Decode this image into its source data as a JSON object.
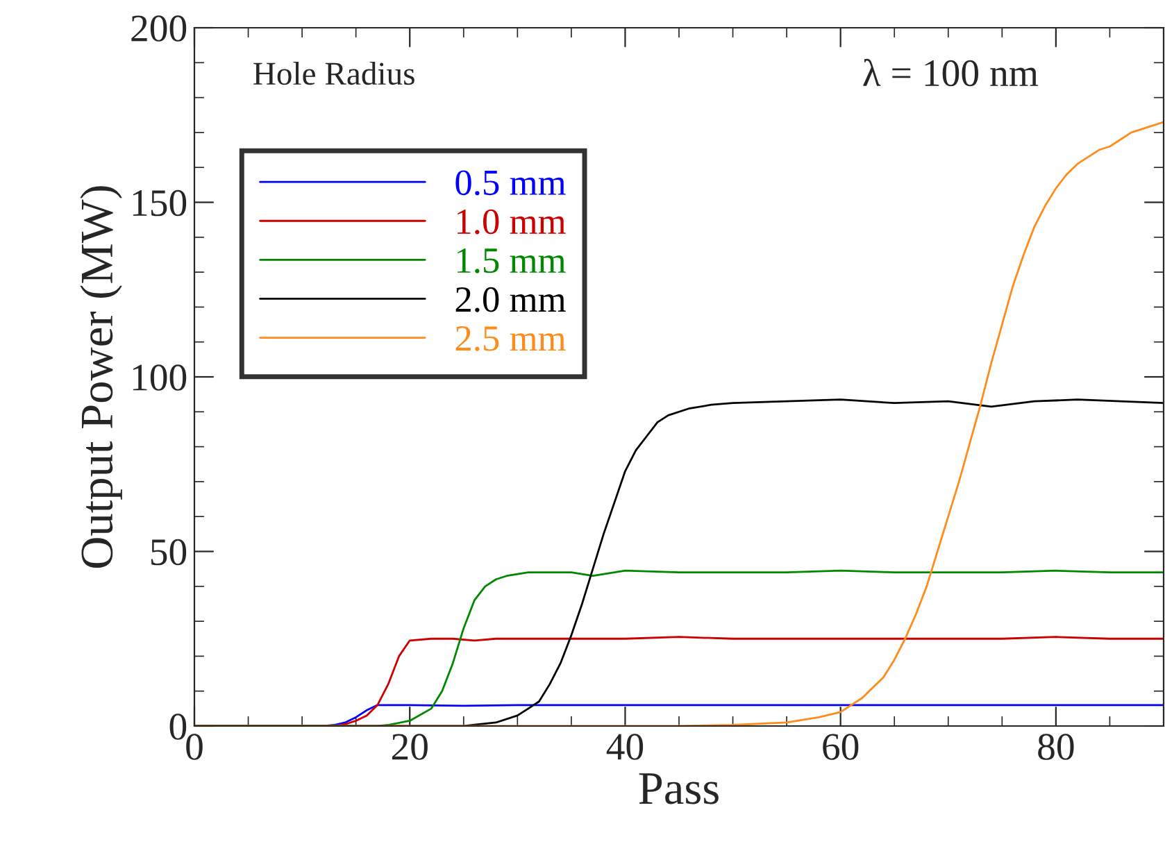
{
  "chart_data": {
    "type": "line",
    "xlabel": "Pass",
    "ylabel": "Output Power (MW)",
    "legend_title": "Hole Radius",
    "annotations": [
      "λ = 100 nm"
    ],
    "xlim": [
      0,
      90
    ],
    "ylim": [
      0,
      200
    ],
    "xticks": [
      0,
      20,
      40,
      60,
      80
    ],
    "yticks": [
      0,
      50,
      100,
      150,
      200
    ],
    "grid": false,
    "legend": "top left",
    "line_style": "solid",
    "marker": "none",
    "series": [
      {
        "name": "0.5 mm",
        "color": "#0000ff",
        "x": [
          0,
          12,
          13,
          14,
          15,
          16,
          17,
          20,
          25,
          30,
          40,
          50,
          60,
          70,
          80,
          90
        ],
        "values": [
          0,
          0,
          0.3,
          1,
          2.5,
          4.5,
          6,
          6,
          5.8,
          6,
          6,
          6,
          6,
          6,
          6,
          6
        ]
      },
      {
        "name": "1.0 mm",
        "color": "#cc0000",
        "x": [
          0,
          13,
          14,
          15,
          16,
          17,
          18,
          19,
          20,
          22,
          24,
          26,
          28,
          30,
          35,
          40,
          45,
          50,
          55,
          60,
          65,
          70,
          75,
          80,
          85,
          90
        ],
        "values": [
          0,
          0,
          0.5,
          1.5,
          3,
          6,
          12,
          20,
          24.5,
          25,
          25,
          24.5,
          25,
          25,
          25,
          25,
          25.5,
          25,
          25,
          25,
          25,
          25,
          25,
          25.5,
          25,
          25
        ]
      },
      {
        "name": "1.5 mm",
        "color": "#008800",
        "x": [
          0,
          17,
          18,
          20,
          22,
          23,
          24,
          25,
          26,
          27,
          28,
          29,
          31,
          33,
          35,
          37,
          40,
          45,
          50,
          55,
          60,
          65,
          70,
          75,
          80,
          85,
          90
        ],
        "values": [
          0,
          0,
          0.3,
          1.5,
          5,
          10,
          18,
          28,
          36,
          40,
          42,
          43,
          44,
          44,
          44,
          43,
          44.5,
          44,
          44,
          44,
          44.5,
          44,
          44,
          44,
          44.5,
          44,
          44
        ]
      },
      {
        "name": "2.0 mm",
        "color": "#000000",
        "x": [
          0,
          25,
          28,
          30,
          32,
          33,
          34,
          35,
          36,
          37,
          38,
          39,
          40,
          41,
          42,
          43,
          44,
          46,
          48,
          50,
          55,
          60,
          65,
          70,
          74,
          78,
          82,
          86,
          90
        ],
        "values": [
          0,
          0,
          1,
          3,
          7,
          12,
          18,
          26,
          35,
          45,
          55,
          64,
          73,
          79,
          83,
          87,
          89,
          91,
          92,
          92.5,
          93,
          93.5,
          92.5,
          93,
          91.5,
          93,
          93.5,
          93,
          92.5
        ]
      },
      {
        "name": "2.5 mm",
        "color": "#ff8c1a",
        "x": [
          0,
          45,
          50,
          55,
          58,
          60,
          62,
          64,
          65,
          66,
          67,
          68,
          69,
          70,
          71,
          72,
          73,
          74,
          75,
          76,
          77,
          78,
          79,
          80,
          81,
          82,
          83,
          84,
          85,
          86,
          87,
          88,
          89,
          90
        ],
        "values": [
          0,
          0,
          0.3,
          1,
          2.5,
          4,
          8,
          14,
          19,
          25,
          32,
          40,
          50,
          60,
          70,
          81,
          92,
          104,
          115,
          126,
          135,
          143,
          149,
          154,
          158,
          161,
          163,
          165,
          166,
          168,
          170,
          171,
          172,
          173
        ]
      }
    ]
  }
}
